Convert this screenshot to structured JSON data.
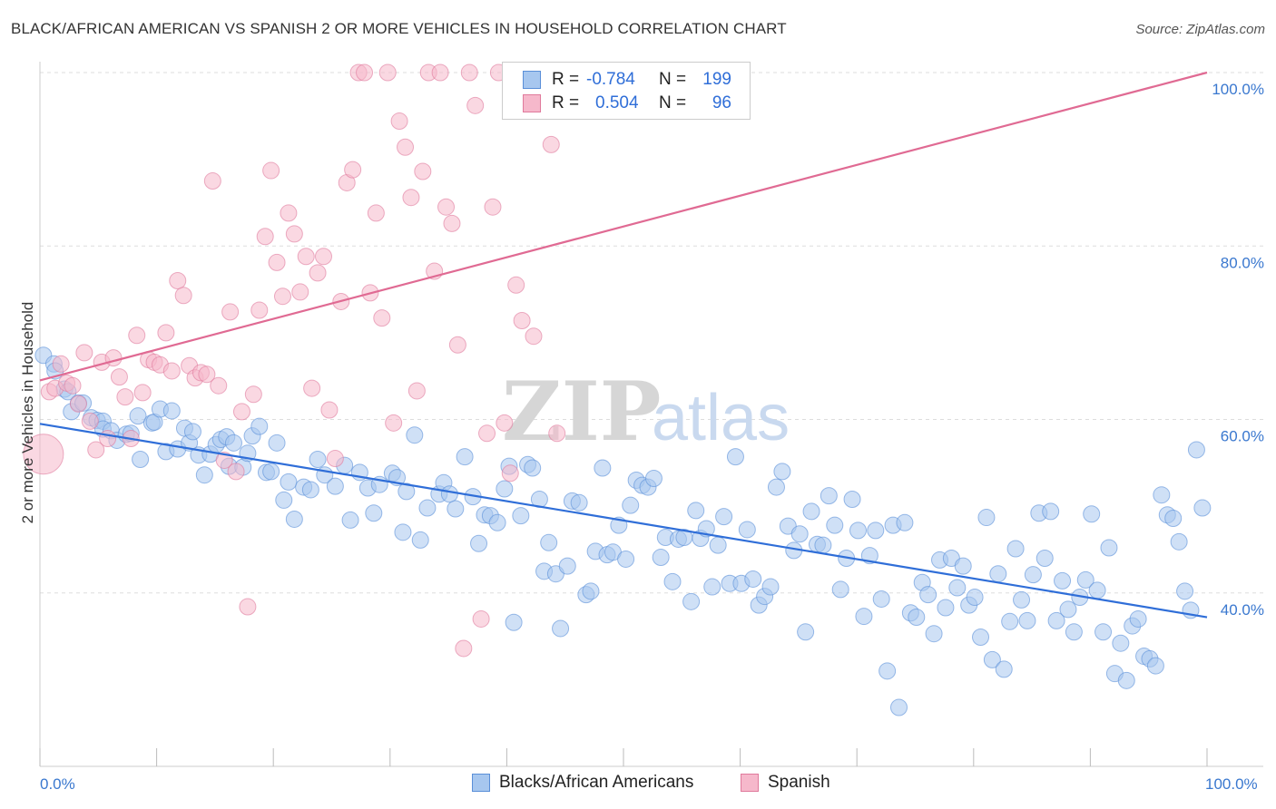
{
  "title": "BLACK/AFRICAN AMERICAN VS SPANISH 2 OR MORE VEHICLES IN HOUSEHOLD CORRELATION CHART",
  "source": "Source: ZipAtlas.com",
  "watermark": {
    "zip": "ZIP",
    "atlas": "atlas"
  },
  "legend": {
    "rows": [
      {
        "r_label": "R =",
        "r_value": "-0.784",
        "n_label": "N =",
        "n_value": "199",
        "color": "#a7c7ef",
        "stroke": "#5a8fd8"
      },
      {
        "r_label": "R =",
        "r_value": "0.504",
        "n_label": "N =",
        "n_value": "96",
        "color": "#f6b8cb",
        "stroke": "#e07a9c"
      }
    ]
  },
  "bottom_legend": [
    {
      "label": "Blacks/African Americans",
      "color": "#a7c7ef",
      "stroke": "#5a8fd8"
    },
    {
      "label": "Spanish",
      "color": "#f6b8cb",
      "stroke": "#e07a9c"
    }
  ],
  "chart_data": {
    "type": "scatter",
    "title": "BLACK/AFRICAN AMERICAN VS SPANISH 2 OR MORE VEHICLES IN HOUSEHOLD CORRELATION CHART",
    "xlabel": "",
    "ylabel": "2 or more Vehicles in Household",
    "xlim": [
      0,
      100
    ],
    "ylim": [
      20,
      100
    ],
    "x_tick_labels": [
      "0.0%",
      "100.0%"
    ],
    "y_tick_labels": [
      "40.0%",
      "60.0%",
      "80.0%",
      "100.0%"
    ],
    "y_ticks": [
      40,
      60,
      80,
      100
    ],
    "grid": "horizontal dashed",
    "legend_position": "top-center",
    "series": [
      {
        "name": "Blacks/African Americans",
        "color": "#a7c7ef",
        "stroke": "#5a8fd8",
        "trend": {
          "x": [
            0,
            100
          ],
          "y": [
            59.5,
            37.2
          ],
          "color": "#2f6ed8"
        },
        "points": [
          [
            0.3,
            67.4
          ],
          [
            1.2,
            66.4
          ],
          [
            1.3,
            65.6
          ],
          [
            2.1,
            63.5
          ],
          [
            2.4,
            63.2
          ],
          [
            2.7,
            60.9
          ],
          [
            3.3,
            61.9
          ],
          [
            3.7,
            61.9
          ],
          [
            4.4,
            60.2
          ],
          [
            4.9,
            59.9
          ],
          [
            5.4,
            59.8
          ],
          [
            5.4,
            58.9
          ],
          [
            6.1,
            58.7
          ],
          [
            6.6,
            57.6
          ],
          [
            7.4,
            58.3
          ],
          [
            7.8,
            58.4
          ],
          [
            8.4,
            60.4
          ],
          [
            8.6,
            55.4
          ],
          [
            9.6,
            59.6
          ],
          [
            9.8,
            59.7
          ],
          [
            10.3,
            61.2
          ],
          [
            10.8,
            56.3
          ],
          [
            11.3,
            61.0
          ],
          [
            11.8,
            56.6
          ],
          [
            12.4,
            59.0
          ],
          [
            12.8,
            57.3
          ],
          [
            13.1,
            58.6
          ],
          [
            13.6,
            55.9
          ],
          [
            14.1,
            53.6
          ],
          [
            14.6,
            56.0
          ],
          [
            15.1,
            57.1
          ],
          [
            15.5,
            57.7
          ],
          [
            16.0,
            58.0
          ],
          [
            16.2,
            54.6
          ],
          [
            16.6,
            57.3
          ],
          [
            17.4,
            54.5
          ],
          [
            17.8,
            56.1
          ],
          [
            18.2,
            58.1
          ],
          [
            18.8,
            59.2
          ],
          [
            19.4,
            53.9
          ],
          [
            19.8,
            54.0
          ],
          [
            20.3,
            57.3
          ],
          [
            20.9,
            50.7
          ],
          [
            21.3,
            52.8
          ],
          [
            21.8,
            48.5
          ],
          [
            22.6,
            52.2
          ],
          [
            23.2,
            51.9
          ],
          [
            23.8,
            55.4
          ],
          [
            24.4,
            53.6
          ],
          [
            25.3,
            52.3
          ],
          [
            26.1,
            54.7
          ],
          [
            26.6,
            48.4
          ],
          [
            27.4,
            53.9
          ],
          [
            28.1,
            52.1
          ],
          [
            28.6,
            49.2
          ],
          [
            29.1,
            52.5
          ],
          [
            30.2,
            53.8
          ],
          [
            30.6,
            53.3
          ],
          [
            31.1,
            47.0
          ],
          [
            31.4,
            51.7
          ],
          [
            32.1,
            58.2
          ],
          [
            32.6,
            46.1
          ],
          [
            33.2,
            49.8
          ],
          [
            34.2,
            51.4
          ],
          [
            34.6,
            52.7
          ],
          [
            35.1,
            51.4
          ],
          [
            35.6,
            49.7
          ],
          [
            36.4,
            55.7
          ],
          [
            37.1,
            51.1
          ],
          [
            37.6,
            45.7
          ],
          [
            38.1,
            49.0
          ],
          [
            38.6,
            48.9
          ],
          [
            39.2,
            48.1
          ],
          [
            39.8,
            52.0
          ],
          [
            40.2,
            54.6
          ],
          [
            40.6,
            36.6
          ],
          [
            41.2,
            48.9
          ],
          [
            41.8,
            54.8
          ],
          [
            42.2,
            54.4
          ],
          [
            42.8,
            50.8
          ],
          [
            43.2,
            42.5
          ],
          [
            43.6,
            45.8
          ],
          [
            44.2,
            42.2
          ],
          [
            44.6,
            35.9
          ],
          [
            45.2,
            43.1
          ],
          [
            45.6,
            50.6
          ],
          [
            46.2,
            50.4
          ],
          [
            46.8,
            39.8
          ],
          [
            47.2,
            40.2
          ],
          [
            47.6,
            44.8
          ],
          [
            48.2,
            54.4
          ],
          [
            48.6,
            44.4
          ],
          [
            49.1,
            44.7
          ],
          [
            49.6,
            47.8
          ],
          [
            50.2,
            43.9
          ],
          [
            50.6,
            50.1
          ],
          [
            51.1,
            53.0
          ],
          [
            51.6,
            52.4
          ],
          [
            52.1,
            52.2
          ],
          [
            52.6,
            53.2
          ],
          [
            53.2,
            44.1
          ],
          [
            53.6,
            46.4
          ],
          [
            54.2,
            41.3
          ],
          [
            54.7,
            46.2
          ],
          [
            55.2,
            46.4
          ],
          [
            55.8,
            39.0
          ],
          [
            56.2,
            49.5
          ],
          [
            56.6,
            46.3
          ],
          [
            57.1,
            47.4
          ],
          [
            57.6,
            40.7
          ],
          [
            58.1,
            45.5
          ],
          [
            58.6,
            48.8
          ],
          [
            59.1,
            41.1
          ],
          [
            59.6,
            55.7
          ],
          [
            60.1,
            41.1
          ],
          [
            60.6,
            47.3
          ],
          [
            61.1,
            41.6
          ],
          [
            61.6,
            38.6
          ],
          [
            62.1,
            39.6
          ],
          [
            62.6,
            40.7
          ],
          [
            63.1,
            52.2
          ],
          [
            63.6,
            54.0
          ],
          [
            64.1,
            47.7
          ],
          [
            64.6,
            44.9
          ],
          [
            65.1,
            46.8
          ],
          [
            65.6,
            35.5
          ],
          [
            66.1,
            49.4
          ],
          [
            66.6,
            45.6
          ],
          [
            67.1,
            45.5
          ],
          [
            67.6,
            51.2
          ],
          [
            68.1,
            47.8
          ],
          [
            68.6,
            40.4
          ],
          [
            69.1,
            44.0
          ],
          [
            69.6,
            50.8
          ],
          [
            70.1,
            47.2
          ],
          [
            70.6,
            37.3
          ],
          [
            71.1,
            44.3
          ],
          [
            71.6,
            47.2
          ],
          [
            72.1,
            39.3
          ],
          [
            72.6,
            31.0
          ],
          [
            73.1,
            47.8
          ],
          [
            73.6,
            26.8
          ],
          [
            74.1,
            48.1
          ],
          [
            74.6,
            37.7
          ],
          [
            75.1,
            37.2
          ],
          [
            75.6,
            41.2
          ],
          [
            76.1,
            39.8
          ],
          [
            76.6,
            35.3
          ],
          [
            77.1,
            43.8
          ],
          [
            77.6,
            38.3
          ],
          [
            78.1,
            44.0
          ],
          [
            78.6,
            40.6
          ],
          [
            79.1,
            43.1
          ],
          [
            79.6,
            38.6
          ],
          [
            80.1,
            39.5
          ],
          [
            80.6,
            34.9
          ],
          [
            81.1,
            48.7
          ],
          [
            81.6,
            32.3
          ],
          [
            82.1,
            42.2
          ],
          [
            82.6,
            31.2
          ],
          [
            83.1,
            36.7
          ],
          [
            83.6,
            45.1
          ],
          [
            84.1,
            39.2
          ],
          [
            84.6,
            36.8
          ],
          [
            85.1,
            42.1
          ],
          [
            85.6,
            49.2
          ],
          [
            86.1,
            44.0
          ],
          [
            86.6,
            49.4
          ],
          [
            87.1,
            36.8
          ],
          [
            87.6,
            41.4
          ],
          [
            88.1,
            38.1
          ],
          [
            88.6,
            35.5
          ],
          [
            89.1,
            39.5
          ],
          [
            89.6,
            41.5
          ],
          [
            90.1,
            49.1
          ],
          [
            90.6,
            40.3
          ],
          [
            91.1,
            35.5
          ],
          [
            91.6,
            45.2
          ],
          [
            92.1,
            30.7
          ],
          [
            92.6,
            34.2
          ],
          [
            93.1,
            29.9
          ],
          [
            93.6,
            36.2
          ],
          [
            94.1,
            37.0
          ],
          [
            94.6,
            32.7
          ],
          [
            95.1,
            32.4
          ],
          [
            95.6,
            31.6
          ],
          [
            96.1,
            51.3
          ],
          [
            96.6,
            49.0
          ],
          [
            97.1,
            48.6
          ],
          [
            97.6,
            45.9
          ],
          [
            98.1,
            40.2
          ],
          [
            98.6,
            38.0
          ],
          [
            99.1,
            56.5
          ],
          [
            99.6,
            49.8
          ]
        ]
      },
      {
        "name": "Spanish",
        "color": "#f6b8cb",
        "stroke": "#e07a9c",
        "trend": {
          "x": [
            0,
            100
          ],
          "y": [
            64.5,
            100.0
          ],
          "color": "#e06a93"
        },
        "points": [
          [
            0.3,
            56.0
          ],
          [
            0.8,
            63.2
          ],
          [
            1.3,
            63.6
          ],
          [
            1.8,
            66.4
          ],
          [
            2.3,
            64.2
          ],
          [
            2.8,
            63.9
          ],
          [
            3.3,
            61.8
          ],
          [
            3.8,
            67.7
          ],
          [
            4.3,
            59.8
          ],
          [
            4.8,
            56.5
          ],
          [
            5.3,
            66.6
          ],
          [
            5.8,
            57.8
          ],
          [
            6.3,
            67.1
          ],
          [
            6.8,
            64.9
          ],
          [
            7.3,
            62.6
          ],
          [
            7.8,
            57.8
          ],
          [
            8.3,
            69.7
          ],
          [
            8.8,
            63.1
          ],
          [
            9.3,
            66.9
          ],
          [
            9.8,
            66.6
          ],
          [
            10.3,
            66.3
          ],
          [
            10.8,
            70.0
          ],
          [
            11.3,
            65.6
          ],
          [
            11.8,
            76.0
          ],
          [
            12.3,
            74.3
          ],
          [
            12.8,
            66.2
          ],
          [
            13.3,
            64.8
          ],
          [
            13.8,
            65.4
          ],
          [
            14.3,
            65.2
          ],
          [
            14.8,
            87.5
          ],
          [
            15.3,
            63.9
          ],
          [
            15.8,
            55.3
          ],
          [
            16.3,
            72.4
          ],
          [
            16.8,
            54.0
          ],
          [
            17.3,
            60.9
          ],
          [
            17.8,
            38.4
          ],
          [
            18.3,
            62.9
          ],
          [
            18.8,
            72.6
          ],
          [
            19.3,
            81.1
          ],
          [
            19.8,
            88.7
          ],
          [
            20.3,
            78.1
          ],
          [
            20.8,
            74.2
          ],
          [
            21.3,
            83.8
          ],
          [
            21.8,
            81.4
          ],
          [
            22.3,
            74.7
          ],
          [
            22.8,
            78.8
          ],
          [
            23.3,
            63.6
          ],
          [
            23.8,
            76.9
          ],
          [
            24.3,
            78.8
          ],
          [
            24.8,
            61.1
          ],
          [
            25.3,
            55.5
          ],
          [
            25.8,
            73.6
          ],
          [
            26.3,
            87.3
          ],
          [
            26.8,
            88.8
          ],
          [
            27.3,
            100.0
          ],
          [
            27.8,
            100.0
          ],
          [
            28.3,
            74.6
          ],
          [
            28.8,
            83.8
          ],
          [
            29.3,
            71.7
          ],
          [
            29.8,
            100.0
          ],
          [
            30.3,
            59.6
          ],
          [
            30.8,
            94.4
          ],
          [
            31.3,
            91.4
          ],
          [
            31.8,
            85.6
          ],
          [
            32.3,
            63.3
          ],
          [
            32.8,
            88.6
          ],
          [
            33.3,
            100.0
          ],
          [
            33.8,
            77.1
          ],
          [
            34.3,
            100.0
          ],
          [
            34.8,
            84.5
          ],
          [
            35.3,
            82.6
          ],
          [
            35.8,
            68.6
          ],
          [
            36.3,
            33.6
          ],
          [
            36.8,
            100.0
          ],
          [
            37.3,
            96.2
          ],
          [
            37.8,
            37.0
          ],
          [
            38.3,
            58.4
          ],
          [
            38.8,
            84.5
          ],
          [
            39.3,
            100.0
          ],
          [
            39.8,
            59.6
          ],
          [
            40.3,
            53.8
          ],
          [
            40.8,
            75.5
          ],
          [
            41.3,
            71.4
          ],
          [
            41.8,
            100.0
          ],
          [
            42.3,
            69.6
          ],
          [
            42.8,
            96.9
          ],
          [
            43.3,
            100.0
          ],
          [
            43.8,
            91.7
          ],
          [
            44.3,
            58.4
          ],
          [
            44.8,
            100.0
          ],
          [
            45.3,
            100.0
          ],
          [
            45.8,
            100.0
          ],
          [
            46.3,
            100.0
          ],
          [
            46.8,
            100.0
          ],
          [
            47.3,
            100.0
          ],
          [
            47.8,
            100.0
          ]
        ]
      }
    ]
  }
}
